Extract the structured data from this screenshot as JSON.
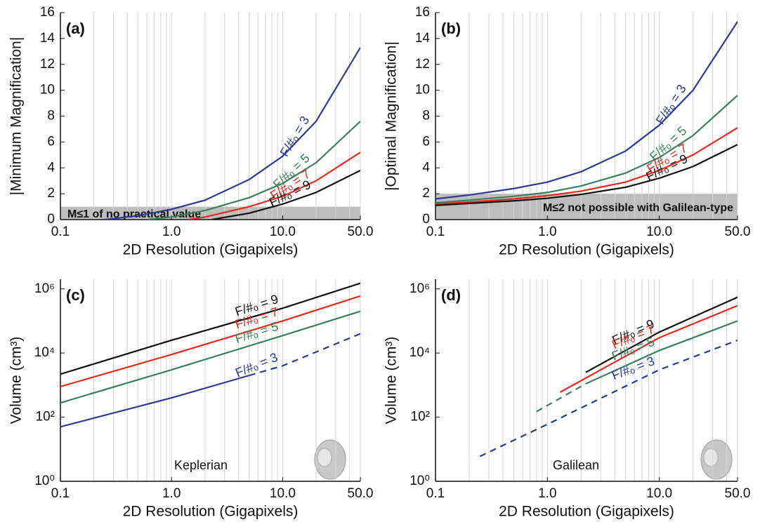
{
  "chart_data": [
    {
      "type": "line",
      "panel_label": "(a)",
      "xlabel": "2D Resolution (Gigapixels)",
      "ylabel": "|Minimum Magnification|",
      "xscale": "log",
      "xlim": [
        0.1,
        50
      ],
      "xticks": [
        0.1,
        {
          "value": 1,
          "label": "1.0"
        },
        {
          "value": 10,
          "label": "10.0"
        },
        {
          "value": 50,
          "label": "50.0"
        }
      ],
      "xminorticks": [
        0.2,
        0.3,
        0.4,
        0.5,
        0.6,
        0.7,
        0.8,
        0.9,
        2,
        3,
        4,
        5,
        6,
        7,
        8,
        9,
        20,
        30,
        40
      ],
      "ylim": [
        0,
        16
      ],
      "yticks": [
        0,
        2,
        4,
        6,
        8,
        10,
        12,
        14,
        16
      ],
      "band": {
        "from": 0,
        "to": 1,
        "label": "M≤1 of no practical value",
        "color": "#bdbdbd"
      },
      "series": [
        {
          "name": "F/#ₒ = 3",
          "color": "#2b3a93",
          "x": [
            0.25,
            0.5,
            1,
            2,
            5,
            10,
            20,
            50
          ],
          "values": [
            0,
            0.3,
            0.8,
            1.5,
            3.1,
            4.9,
            7.6,
            13.3
          ]
        },
        {
          "name": "F/#ₒ = 5",
          "color": "#3b7f5c",
          "x": [
            0.6,
            1,
            2,
            5,
            10,
            20,
            50
          ],
          "values": [
            0,
            0.2,
            0.7,
            1.7,
            2.8,
            4.4,
            7.6
          ]
        },
        {
          "name": "F/#ₒ = 7",
          "color": "#e8281e",
          "x": [
            1.4,
            2,
            5,
            10,
            20,
            50
          ],
          "values": [
            0,
            0.2,
            1.0,
            1.8,
            3.0,
            5.2
          ]
        },
        {
          "name": "F/#ₒ = 9",
          "color": "#111111",
          "x": [
            2.3,
            5,
            10,
            20,
            50
          ],
          "values": [
            0,
            0.5,
            1.2,
            2.1,
            3.8
          ]
        }
      ]
    },
    {
      "type": "line",
      "panel_label": "(b)",
      "xlabel": "2D Resolution (Gigapixels)",
      "ylabel": "|Optimal Magnification|",
      "xscale": "log",
      "xlim": [
        0.1,
        50
      ],
      "xticks": [
        0.1,
        {
          "value": 1,
          "label": "1.0"
        },
        {
          "value": 10,
          "label": "10.0"
        },
        {
          "value": 50,
          "label": "50.0"
        }
      ],
      "xminorticks": [
        0.2,
        0.3,
        0.4,
        0.5,
        0.6,
        0.7,
        0.8,
        0.9,
        2,
        3,
        4,
        5,
        6,
        7,
        8,
        9,
        20,
        30,
        40
      ],
      "ylim": [
        0,
        16
      ],
      "yticks": [
        0,
        2,
        4,
        6,
        8,
        10,
        12,
        14,
        16
      ],
      "band": {
        "from": 0,
        "to": 2,
        "label": "M≤2 not possible with Galilean-type",
        "color": "#bdbdbd"
      },
      "series": [
        {
          "name": "F/#ₒ = 3",
          "color": "#2b3a93",
          "x": [
            0.1,
            0.2,
            0.5,
            1,
            2,
            5,
            10,
            20,
            50
          ],
          "values": [
            1.6,
            1.9,
            2.4,
            2.9,
            3.7,
            5.3,
            7.3,
            10.0,
            15.3
          ]
        },
        {
          "name": "F/#ₒ = 5",
          "color": "#3b7f5c",
          "x": [
            0.1,
            0.2,
            0.5,
            1,
            2,
            5,
            10,
            20,
            50
          ],
          "values": [
            1.3,
            1.5,
            1.8,
            2.1,
            2.6,
            3.6,
            4.8,
            6.5,
            9.6
          ]
        },
        {
          "name": "F/#ₒ = 7",
          "color": "#e8281e",
          "x": [
            0.1,
            0.2,
            0.5,
            1,
            2,
            5,
            10,
            20,
            50
          ],
          "values": [
            1.2,
            1.35,
            1.6,
            1.85,
            2.2,
            2.9,
            3.8,
            5.0,
            7.1
          ]
        },
        {
          "name": "F/#ₒ = 9",
          "color": "#111111",
          "x": [
            0.1,
            0.2,
            0.5,
            1,
            2,
            5,
            10,
            20,
            50
          ],
          "values": [
            1.1,
            1.25,
            1.45,
            1.65,
            1.95,
            2.5,
            3.2,
            4.1,
            5.8
          ]
        }
      ]
    },
    {
      "type": "line",
      "panel_label": "(c)",
      "xlabel": "2D Resolution (Gigapixels)",
      "ylabel": "Volume (cm³)",
      "annotation": "Keplerian",
      "xscale": "log",
      "xlim": [
        0.1,
        50
      ],
      "xticks": [
        0.1,
        {
          "value": 1,
          "label": "1.0"
        },
        {
          "value": 10,
          "label": "10.0"
        },
        {
          "value": 50,
          "label": "50.0"
        }
      ],
      "xminorticks": [
        0.2,
        0.3,
        0.4,
        0.5,
        0.6,
        0.7,
        0.8,
        0.9,
        2,
        3,
        4,
        5,
        6,
        7,
        8,
        9,
        20,
        30,
        40
      ],
      "yscale": "log",
      "ylim": [
        1,
        2000000
      ],
      "yticks": [
        {
          "value": 1,
          "label": "10⁰"
        },
        {
          "value": 100,
          "label": "10²"
        },
        {
          "value": 10000,
          "label": "10⁴"
        },
        {
          "value": 1000000,
          "label": "10⁶"
        }
      ],
      "series": [
        {
          "name": "F/#ₒ = 9",
          "color": "#111111",
          "x": [
            0.1,
            1,
            10,
            50
          ],
          "values": [
            2200,
            25000,
            250000,
            1500000
          ]
        },
        {
          "name": "F/#ₒ = 7",
          "color": "#e8281e",
          "x": [
            0.1,
            1,
            10,
            50
          ],
          "values": [
            900,
            9000,
            100000,
            600000
          ]
        },
        {
          "name": "F/#ₒ = 5",
          "color": "#3b7f5c",
          "x": [
            0.1,
            1,
            10,
            50
          ],
          "values": [
            280,
            3000,
            35000,
            200000
          ]
        },
        {
          "name": "F/#ₒ = 3",
          "color": "#2b3a93",
          "x": [
            0.1,
            1,
            5,
            10,
            50
          ],
          "values": [
            50,
            400,
            2000,
            4000,
            40000
          ],
          "dashed": [
            false,
            false,
            false,
            true,
            true
          ]
        }
      ]
    },
    {
      "type": "line",
      "panel_label": "(d)",
      "xlabel": "2D Resolution (Gigapixels)",
      "ylabel": "Volume (cm³)",
      "annotation": "Galilean",
      "xscale": "log",
      "xlim": [
        0.1,
        50
      ],
      "xticks": [
        0.1,
        {
          "value": 1,
          "label": "1.0"
        },
        {
          "value": 10,
          "label": "10.0"
        },
        {
          "value": 50,
          "label": "50.0"
        }
      ],
      "xminorticks": [
        0.2,
        0.3,
        0.4,
        0.5,
        0.6,
        0.7,
        0.8,
        0.9,
        2,
        3,
        4,
        5,
        6,
        7,
        8,
        9,
        20,
        30,
        40
      ],
      "yscale": "log",
      "ylim": [
        1,
        2000000
      ],
      "yticks": [
        {
          "value": 1,
          "label": "10⁰"
        },
        {
          "value": 100,
          "label": "10²"
        },
        {
          "value": 10000,
          "label": "10⁴"
        },
        {
          "value": 1000000,
          "label": "10⁶"
        }
      ],
      "series": [
        {
          "name": "F/#ₒ = 9",
          "color": "#111111",
          "x": [
            2.2,
            5,
            10,
            50
          ],
          "values": [
            2500,
            12000,
            45000,
            550000
          ]
        },
        {
          "name": "F/#ₒ = 7",
          "color": "#e8281e",
          "x": [
            1.3,
            3,
            10,
            50
          ],
          "values": [
            600,
            3000,
            30000,
            300000
          ]
        },
        {
          "name": "F/#ₒ = 5",
          "color": "#3b7f5c",
          "x": [
            0.8,
            2.2,
            10,
            50
          ],
          "values": [
            150,
            1100,
            12000,
            100000
          ],
          "dashed": [
            false,
            true,
            false,
            false
          ]
        },
        {
          "name": "F/#ₒ = 3",
          "color": "#2b3a93",
          "x": [
            0.25,
            1,
            10,
            50
          ],
          "values": [
            6,
            60,
            3000,
            25000
          ],
          "dashed": [
            true,
            true,
            true,
            true
          ]
        }
      ]
    }
  ]
}
